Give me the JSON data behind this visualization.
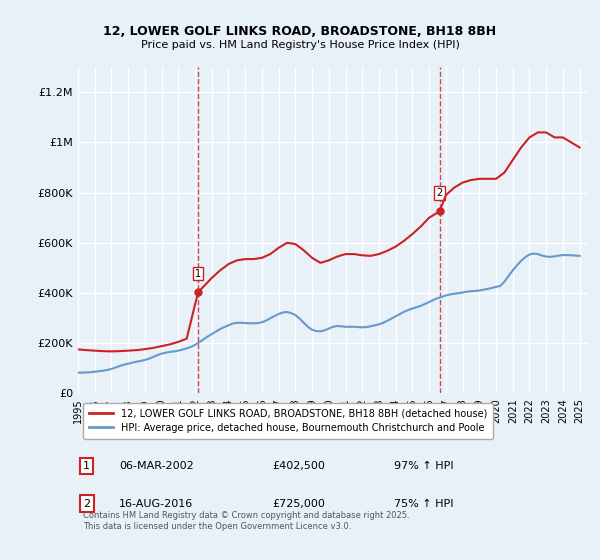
{
  "title": "12, LOWER GOLF LINKS ROAD, BROADSTONE, BH18 8BH",
  "subtitle": "Price paid vs. HM Land Registry's House Price Index (HPI)",
  "ylabel_ticks": [
    "£0",
    "£200K",
    "£400K",
    "£600K",
    "£800K",
    "£1M",
    "£1.2M"
  ],
  "ytick_values": [
    0,
    200000,
    400000,
    600000,
    800000,
    1000000,
    1200000
  ],
  "ylim": [
    0,
    1300000
  ],
  "xlim_start": 1995.0,
  "xlim_end": 2025.5,
  "background_color": "#e8f0f8",
  "plot_bg_color": "#e8f0f8",
  "grid_color": "#ffffff",
  "hpi_line_color": "#6699cc",
  "price_line_color": "#cc2222",
  "marker1_x": 2002.18,
  "marker1_y": 402500,
  "marker2_x": 2016.62,
  "marker2_y": 725000,
  "marker1_label": "1",
  "marker2_label": "2",
  "marker_vline_color": "#cc2222",
  "legend_line1": "12, LOWER GOLF LINKS ROAD, BROADSTONE, BH18 8BH (detached house)",
  "legend_line2": "HPI: Average price, detached house, Bournemouth Christchurch and Poole",
  "annotation1_date": "06-MAR-2002",
  "annotation1_price": "£402,500",
  "annotation1_hpi": "97% ↑ HPI",
  "annotation2_date": "16-AUG-2016",
  "annotation2_price": "£725,000",
  "annotation2_hpi": "75% ↑ HPI",
  "footer": "Contains HM Land Registry data © Crown copyright and database right 2025.\nThis data is licensed under the Open Government Licence v3.0.",
  "hpi_data_x": [
    1995.0,
    1995.25,
    1995.5,
    1995.75,
    1996.0,
    1996.25,
    1996.5,
    1996.75,
    1997.0,
    1997.25,
    1997.5,
    1997.75,
    1998.0,
    1998.25,
    1998.5,
    1998.75,
    1999.0,
    1999.25,
    1999.5,
    1999.75,
    2000.0,
    2000.25,
    2000.5,
    2000.75,
    2001.0,
    2001.25,
    2001.5,
    2001.75,
    2002.0,
    2002.25,
    2002.5,
    2002.75,
    2003.0,
    2003.25,
    2003.5,
    2003.75,
    2004.0,
    2004.25,
    2004.5,
    2004.75,
    2005.0,
    2005.25,
    2005.5,
    2005.75,
    2006.0,
    2006.25,
    2006.5,
    2006.75,
    2007.0,
    2007.25,
    2007.5,
    2007.75,
    2008.0,
    2008.25,
    2008.5,
    2008.75,
    2009.0,
    2009.25,
    2009.5,
    2009.75,
    2010.0,
    2010.25,
    2010.5,
    2010.75,
    2011.0,
    2011.25,
    2011.5,
    2011.75,
    2012.0,
    2012.25,
    2012.5,
    2012.75,
    2013.0,
    2013.25,
    2013.5,
    2013.75,
    2014.0,
    2014.25,
    2014.5,
    2014.75,
    2015.0,
    2015.25,
    2015.5,
    2015.75,
    2016.0,
    2016.25,
    2016.5,
    2016.75,
    2017.0,
    2017.25,
    2017.5,
    2017.75,
    2018.0,
    2018.25,
    2018.5,
    2018.75,
    2019.0,
    2019.25,
    2019.5,
    2019.75,
    2020.0,
    2020.25,
    2020.5,
    2020.75,
    2021.0,
    2021.25,
    2021.5,
    2021.75,
    2022.0,
    2022.25,
    2022.5,
    2022.75,
    2023.0,
    2023.25,
    2023.5,
    2023.75,
    2024.0,
    2024.25,
    2024.5,
    2024.75,
    2025.0
  ],
  "hpi_data_y": [
    82000,
    82500,
    83000,
    84000,
    86000,
    88000,
    90000,
    93000,
    97000,
    103000,
    109000,
    114000,
    118000,
    122000,
    126000,
    129000,
    133000,
    138000,
    145000,
    152000,
    158000,
    162000,
    165000,
    167000,
    170000,
    174000,
    179000,
    185000,
    193000,
    203000,
    215000,
    226000,
    236000,
    246000,
    256000,
    264000,
    271000,
    278000,
    281000,
    281000,
    280000,
    279000,
    279000,
    280000,
    283000,
    290000,
    299000,
    308000,
    316000,
    322000,
    324000,
    320000,
    312000,
    298000,
    281000,
    265000,
    253000,
    248000,
    247000,
    251000,
    258000,
    265000,
    268000,
    267000,
    265000,
    265000,
    265000,
    264000,
    263000,
    264000,
    267000,
    271000,
    275000,
    281000,
    289000,
    298000,
    307000,
    316000,
    325000,
    332000,
    338000,
    343000,
    349000,
    356000,
    364000,
    372000,
    379000,
    384000,
    390000,
    394000,
    397000,
    399000,
    402000,
    405000,
    407000,
    408000,
    410000,
    413000,
    416000,
    420000,
    424000,
    428000,
    445000,
    468000,
    490000,
    510000,
    528000,
    543000,
    553000,
    557000,
    555000,
    549000,
    545000,
    544000,
    546000,
    549000,
    551000,
    551000,
    550000,
    549000,
    548000
  ],
  "price_data_x": [
    1995.0,
    1995.5,
    1996.0,
    1996.5,
    1997.0,
    1997.5,
    1998.0,
    1998.5,
    1999.0,
    1999.5,
    2000.0,
    2000.5,
    2001.0,
    2001.5,
    2002.18,
    2003.0,
    2003.5,
    2004.0,
    2004.5,
    2005.0,
    2005.5,
    2006.0,
    2006.5,
    2007.0,
    2007.5,
    2008.0,
    2008.5,
    2009.0,
    2009.5,
    2010.0,
    2010.5,
    2011.0,
    2011.5,
    2012.0,
    2012.5,
    2013.0,
    2013.5,
    2014.0,
    2014.5,
    2015.0,
    2015.5,
    2016.0,
    2016.62,
    2017.0,
    2017.5,
    2018.0,
    2018.5,
    2019.0,
    2019.5,
    2020.0,
    2020.5,
    2021.0,
    2021.5,
    2022.0,
    2022.5,
    2023.0,
    2023.5,
    2024.0,
    2024.5,
    2025.0
  ],
  "price_data_y": [
    175000,
    172000,
    170000,
    168000,
    167000,
    168000,
    170000,
    172000,
    176000,
    181000,
    188000,
    195000,
    205000,
    218000,
    402500,
    460000,
    490000,
    515000,
    530000,
    535000,
    535000,
    540000,
    555000,
    580000,
    600000,
    595000,
    570000,
    540000,
    520000,
    530000,
    545000,
    555000,
    555000,
    550000,
    548000,
    555000,
    568000,
    585000,
    608000,
    635000,
    665000,
    700000,
    725000,
    790000,
    820000,
    840000,
    850000,
    855000,
    855000,
    855000,
    880000,
    930000,
    980000,
    1020000,
    1040000,
    1040000,
    1020000,
    1020000,
    1000000,
    980000
  ]
}
